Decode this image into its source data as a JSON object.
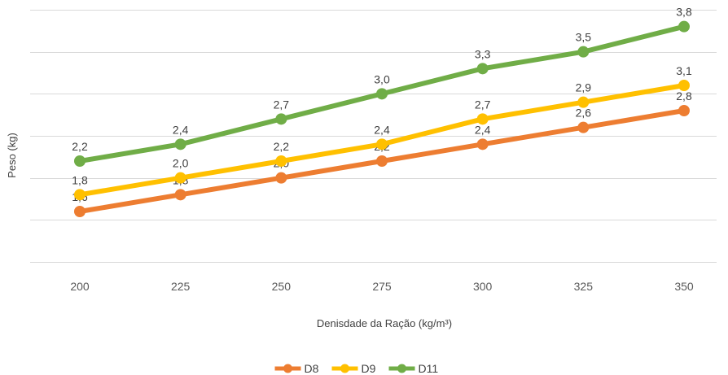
{
  "chart_data": {
    "type": "line",
    "title": "",
    "xlabel": "Denisdade da Ração (kg/m³)",
    "ylabel": "Peso (kg)",
    "categories": [
      "200",
      "225",
      "250",
      "275",
      "300",
      "325",
      "350"
    ],
    "ylim": [
      1.0,
      4.0
    ],
    "ytick_labels_shown": false,
    "grid": true,
    "legend_position": "bottom",
    "series": [
      {
        "name": "D8",
        "color": "#ed7d31",
        "values": [
          1.6,
          1.8,
          2.0,
          2.2,
          2.4,
          2.6,
          2.8
        ],
        "labels": [
          "1,6",
          "1,8",
          "2,0",
          "2,2",
          "2,4",
          "2,6",
          "2,8"
        ]
      },
      {
        "name": "D9",
        "color": "#ffc000",
        "values": [
          1.8,
          2.0,
          2.2,
          2.4,
          2.7,
          2.9,
          3.1
        ],
        "labels": [
          "1,8",
          "2,0",
          "2,2",
          "2,4",
          "2,7",
          "2,9",
          "3,1"
        ]
      },
      {
        "name": "D11",
        "color": "#70ad47",
        "values": [
          2.2,
          2.4,
          2.7,
          3.0,
          3.3,
          3.5,
          3.8
        ],
        "labels": [
          "2,2",
          "2,4",
          "2,7",
          "3,0",
          "3,3",
          "3,5",
          "3,8"
        ]
      }
    ]
  }
}
